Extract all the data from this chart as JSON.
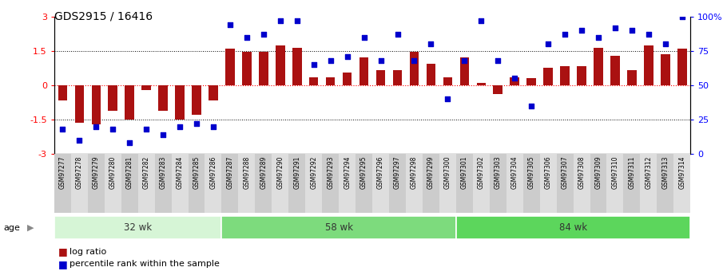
{
  "title": "GDS2915 / 16416",
  "samples": [
    "GSM97277",
    "GSM97278",
    "GSM97279",
    "GSM97280",
    "GSM97281",
    "GSM97282",
    "GSM97283",
    "GSM97284",
    "GSM97285",
    "GSM97286",
    "GSM97287",
    "GSM97288",
    "GSM97289",
    "GSM97290",
    "GSM97291",
    "GSM97292",
    "GSM97293",
    "GSM97294",
    "GSM97295",
    "GSM97296",
    "GSM97297",
    "GSM97298",
    "GSM97299",
    "GSM97300",
    "GSM97301",
    "GSM97302",
    "GSM97303",
    "GSM97304",
    "GSM97305",
    "GSM97306",
    "GSM97307",
    "GSM97308",
    "GSM97309",
    "GSM97310",
    "GSM97311",
    "GSM97312",
    "GSM97313",
    "GSM97314"
  ],
  "log_ratio": [
    -0.65,
    -1.65,
    -1.7,
    -1.1,
    -1.5,
    -0.2,
    -1.1,
    -1.5,
    -1.3,
    -0.65,
    1.6,
    1.45,
    1.45,
    1.75,
    1.65,
    0.35,
    0.35,
    0.55,
    1.2,
    0.65,
    0.65,
    1.45,
    0.95,
    0.35,
    1.2,
    0.1,
    -0.4,
    0.35,
    0.3,
    0.75,
    0.85,
    0.85,
    1.65,
    1.3,
    0.65,
    1.75,
    1.35,
    1.6
  ],
  "percentile": [
    18,
    10,
    20,
    18,
    8,
    18,
    14,
    20,
    22,
    20,
    94,
    85,
    87,
    97,
    97,
    65,
    68,
    71,
    85,
    68,
    87,
    68,
    80,
    40,
    68,
    97,
    68,
    55,
    35,
    80,
    87,
    90,
    85,
    92,
    90,
    87,
    80,
    100
  ],
  "groups": [
    {
      "label": "32 wk",
      "start": 0,
      "end": 10
    },
    {
      "label": "58 wk",
      "start": 10,
      "end": 24
    },
    {
      "label": "84 wk",
      "start": 24,
      "end": 38
    }
  ],
  "group_colors": [
    "#d6f5d6",
    "#7ddb7d",
    "#5cd65c"
  ],
  "bar_color": "#aa1111",
  "dot_color": "#0000cc",
  "ylim": [
    -3,
    3
  ],
  "yticks_left": [
    -3,
    -1.5,
    0,
    1.5,
    3
  ],
  "yticks_right_vals": [
    0,
    25,
    50,
    75,
    100
  ],
  "yticks_right_labels": [
    "0",
    "25",
    "50",
    "75",
    "100%"
  ],
  "age_label": "age",
  "legend_log_ratio": "log ratio",
  "legend_percentile": "percentile rank within the sample",
  "tick_colors_even": "#cccccc",
  "tick_colors_odd": "#dedede"
}
